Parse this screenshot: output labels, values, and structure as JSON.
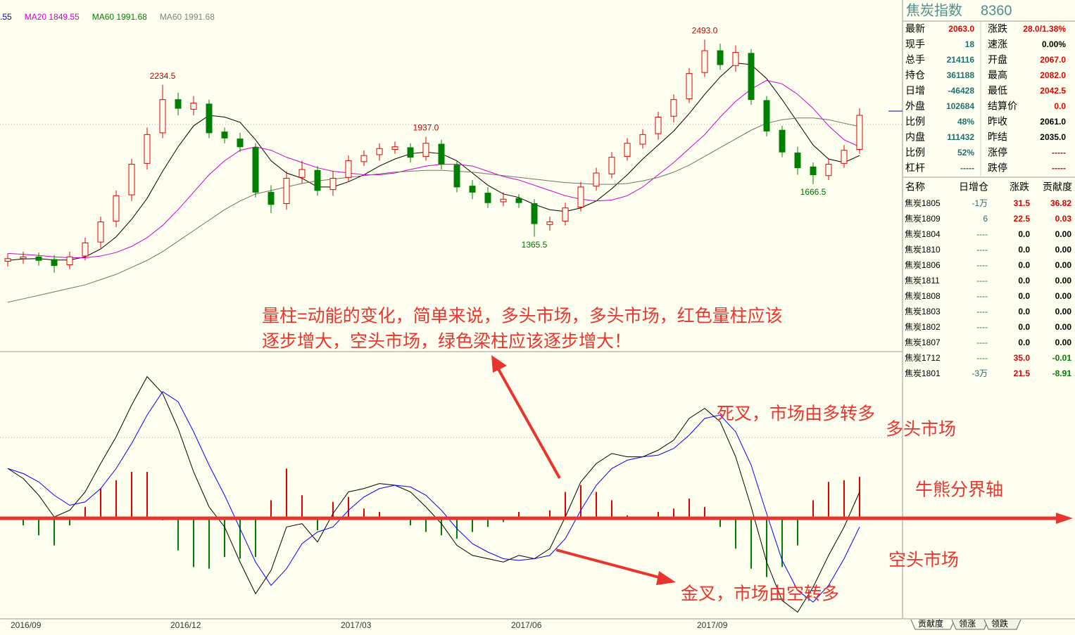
{
  "chart_data": {
    "type": "candlestick",
    "indicator_legend": [
      {
        "text": ".55",
        "color": "#0000c0"
      },
      {
        "text": "MA20 1849.55",
        "color": "#d000d0"
      },
      {
        "text": "MA60 1991.68",
        "color": "#008000"
      },
      {
        "text": "MA60 1991.68",
        "color": "#808080"
      }
    ],
    "categories": [
      "2016/09",
      null,
      null,
      null,
      null,
      null,
      null,
      null,
      null,
      null,
      null,
      "2016/12",
      null,
      null,
      null,
      null,
      null,
      null,
      null,
      null,
      null,
      null,
      "2017/03",
      null,
      null,
      null,
      null,
      null,
      null,
      null,
      null,
      null,
      null,
      "2017/06",
      null,
      null,
      null,
      null,
      null,
      null,
      null,
      null,
      null,
      null,
      null,
      "2017/09",
      null,
      null,
      null,
      null,
      null,
      null,
      null,
      null,
      null,
      null
    ],
    "open": [
      1225,
      1240,
      1250,
      1235,
      1205,
      1255,
      1335,
      1455,
      1605,
      1785,
      1960,
      2150,
      2095,
      2125,
      1965,
      1925,
      1875,
      1620,
      1555,
      1705,
      1745,
      1635,
      1705,
      1795,
      1835,
      1865,
      1875,
      1825,
      1895,
      1775,
      1655,
      1615,
      1565,
      1585,
      1555,
      1435,
      1455,
      1535,
      1655,
      1725,
      1825,
      1895,
      1955,
      2055,
      2155,
      2305,
      2430,
      2345,
      2415,
      2145,
      1975,
      1845,
      1765,
      1715,
      1785,
      1865
    ],
    "high": [
      1270,
      1280,
      1275,
      1260,
      1280,
      1360,
      1480,
      1630,
      1810,
      1990,
      2234.5,
      2190,
      2170,
      2150,
      1990,
      1960,
      1900,
      1660,
      1740,
      1800,
      1770,
      1740,
      1830,
      1860,
      1900,
      1910,
      1900,
      1937,
      1920,
      1800,
      1690,
      1650,
      1620,
      1610,
      1580,
      1480,
      1560,
      1680,
      1760,
      1850,
      1930,
      1980,
      2080,
      2180,
      2330,
      2493,
      2470,
      2460,
      2440,
      2170,
      2000,
      1880,
      1790,
      1810,
      1890,
      2100
    ],
    "low": [
      1195,
      1210,
      1200,
      1160,
      1180,
      1230,
      1300,
      1420,
      1570,
      1750,
      1930,
      2060,
      2060,
      1930,
      1900,
      1850,
      1590,
      1500,
      1520,
      1670,
      1600,
      1600,
      1680,
      1770,
      1800,
      1840,
      1790,
      1800,
      1750,
      1620,
      1580,
      1530,
      1540,
      1530,
      1365.5,
      1400,
      1430,
      1510,
      1630,
      1700,
      1800,
      1870,
      1920,
      2020,
      2130,
      2280,
      2320,
      2310,
      2120,
      1940,
      1820,
      1720,
      1666.5,
      1690,
      1760,
      1840
    ],
    "close": [
      1240,
      1250,
      1230,
      1200,
      1250,
      1330,
      1450,
      1600,
      1780,
      1950,
      2150,
      2100,
      2130,
      1960,
      1930,
      1880,
      1620,
      1550,
      1700,
      1750,
      1630,
      1700,
      1800,
      1830,
      1870,
      1880,
      1820,
      1900,
      1780,
      1650,
      1620,
      1560,
      1580,
      1560,
      1440,
      1450,
      1530,
      1650,
      1730,
      1820,
      1900,
      1950,
      2050,
      2150,
      2300,
      2430,
      2350,
      2420,
      2150,
      1970,
      1850,
      1760,
      1720,
      1780,
      1860,
      2060
    ],
    "up_color": "#e00000",
    "down_color": "#008000",
    "ylim": [
      720,
      2720
    ],
    "extremes": [
      2234.5,
      {
        "value": 1937,
        "label": "1937.0"
      },
      {
        "value": 2493,
        "label": "2493.0"
      },
      1365.5,
      1666.5
    ],
    "ma_series": [
      {
        "color": "#000000",
        "values": [
          1230,
          1238,
          1240,
          1232,
          1232,
          1250,
          1295,
          1365,
          1465,
          1585,
          1740,
          1880,
          2000,
          2060,
          2050,
          2020,
          1920,
          1800,
          1730,
          1700,
          1650,
          1650,
          1680,
          1720,
          1770,
          1810,
          1840,
          1850,
          1840,
          1800,
          1730,
          1660,
          1610,
          1590,
          1550,
          1520,
          1510,
          1530,
          1570,
          1640,
          1720,
          1810,
          1890,
          1970,
          2070,
          2180,
          2280,
          2360,
          2350,
          2270,
          2150,
          2020,
          1890,
          1810,
          1790,
          1830
        ]
      },
      {
        "color": "#d000d0",
        "values": [
          1270,
          1265,
          1258,
          1250,
          1245,
          1245,
          1255,
          1275,
          1310,
          1360,
          1430,
          1520,
          1620,
          1720,
          1800,
          1860,
          1880,
          1860,
          1820,
          1790,
          1760,
          1740,
          1730,
          1720,
          1720,
          1730,
          1750,
          1770,
          1780,
          1780,
          1770,
          1740,
          1710,
          1690,
          1660,
          1630,
          1600,
          1580,
          1570,
          1575,
          1600,
          1650,
          1720,
          1790,
          1870,
          1950,
          2050,
          2140,
          2210,
          2260,
          2240,
          2180,
          2100,
          2000,
          1920,
          1880
        ]
      },
      {
        "color": "#707070",
        "values": [
          990,
          1010,
          1030,
          1050,
          1070,
          1090,
          1120,
          1150,
          1190,
          1230,
          1280,
          1340,
          1400,
          1460,
          1520,
          1570,
          1610,
          1630,
          1650,
          1670,
          1685,
          1695,
          1705,
          1715,
          1725,
          1735,
          1740,
          1745,
          1745,
          1740,
          1735,
          1725,
          1715,
          1705,
          1695,
          1685,
          1675,
          1670,
          1665,
          1665,
          1670,
          1685,
          1705,
          1735,
          1775,
          1825,
          1875,
          1925,
          1975,
          2015,
          2035,
          2045,
          2045,
          2035,
          2015,
          1995
        ]
      }
    ],
    "macd": {
      "ylim": [
        -60,
        100
      ],
      "dif": {
        "color": "#000000",
        "values": [
          30,
          24,
          14,
          1,
          5,
          16,
          33,
          49,
          68,
          85,
          75,
          54,
          28,
          7,
          -5,
          -26,
          -45,
          -31,
          -5,
          -3,
          -14,
          3,
          16,
          18,
          21,
          20,
          16,
          7,
          -3,
          -16,
          -22,
          -24,
          -26,
          -22,
          -24,
          -18,
          1,
          22,
          33,
          39,
          37,
          37,
          41,
          47,
          60,
          66,
          58,
          37,
          7,
          -26,
          -49,
          -56,
          -41,
          -22,
          -5,
          16
        ]
      },
      "dea": {
        "color": "#0000ff",
        "values": [
          30,
          27,
          22,
          14,
          8,
          10,
          18,
          30,
          45,
          62,
          76,
          70,
          52,
          32,
          14,
          -6,
          -26,
          -40,
          -30,
          -15,
          -8,
          -5,
          5,
          13,
          18,
          20,
          19,
          14,
          5,
          -6,
          -15,
          -20,
          -24,
          -25,
          -24,
          -22,
          -12,
          5,
          20,
          30,
          35,
          37,
          38,
          42,
          50,
          60,
          62,
          52,
          32,
          3,
          -25,
          -43,
          -50,
          -40,
          -24,
          -5
        ]
      },
      "hist": {
        "values": [
          0,
          -4,
          -10,
          -16,
          -4,
          7,
          18,
          23,
          28,
          28,
          -1,
          -19,
          -29,
          -30,
          -23,
          -24,
          -23,
          11,
          30,
          14,
          -7,
          10,
          13,
          6,
          4,
          0,
          -4,
          -8,
          -10,
          -12,
          -8,
          -5,
          -2,
          4,
          0,
          5,
          16,
          20,
          16,
          11,
          2,
          0,
          4,
          6,
          12,
          7,
          -5,
          -18,
          -30,
          -35,
          -29,
          -16,
          11,
          22,
          23,
          25
        ]
      }
    }
  },
  "quote_panel": {
    "title": "焦炭指数",
    "code": "8360",
    "rows": [
      [
        "最新",
        "2063.0",
        "涨跌",
        "28.0/1.38%"
      ],
      [
        "现手",
        "18",
        "速涨",
        "0.00%"
      ],
      [
        "总手",
        "214116",
        "开盘",
        "2067.0"
      ],
      [
        "持仓",
        "361188",
        "最高",
        "2082.0"
      ],
      [
        "日增",
        "-46428",
        "最低",
        "2042.5"
      ],
      [
        "外盘",
        "102684",
        "结算价",
        "0.0"
      ],
      [
        "比例",
        "48%",
        "昨收",
        "2061.0"
      ],
      [
        "内盘",
        "111432",
        "昨结",
        "2035.0"
      ],
      [
        "比例",
        "52%",
        "涨停",
        "-----"
      ],
      [
        "杠杆",
        "-----",
        "跌停",
        "-----"
      ]
    ]
  },
  "contracts": {
    "header": [
      "名称",
      "日增仓",
      "涨跌",
      "贡献度"
    ],
    "rows": [
      [
        "焦炭1805",
        "-1万",
        "31.5",
        "36.82"
      ],
      [
        "焦炭1809",
        "6",
        "22.5",
        "0.03"
      ],
      [
        "焦炭1804",
        "----",
        "0.0",
        "0.00"
      ],
      [
        "焦炭1810",
        "----",
        "0.0",
        "0.00"
      ],
      [
        "焦炭1806",
        "----",
        "0.0",
        "0.00"
      ],
      [
        "焦炭1811",
        "----",
        "0.0",
        "0.00"
      ],
      [
        "焦炭1808",
        "----",
        "0.0",
        "0.00"
      ],
      [
        "焦炭1803",
        "----",
        "0.0",
        "0.00"
      ],
      [
        "焦炭1802",
        "----",
        "0.0",
        "0.00"
      ],
      [
        "焦炭1807",
        "----",
        "0.0",
        "0.00"
      ],
      [
        "焦炭1712",
        "----",
        "35.0",
        "-0.01"
      ],
      [
        "焦炭1801",
        "-3万",
        "21.5",
        "-8.91"
      ]
    ]
  },
  "tabs": [
    "贡献度",
    "领涨",
    "领跌"
  ],
  "annotations": [
    "量柱=动能的变化，简单来说，多头市场，多头市场，红色量柱应该",
    "逐步增大，空头市场，绿色梁柱应该逐步增大！",
    "死叉，市场由多转多",
    "多头市场",
    "牛熊分界轴",
    "空头市场",
    "金叉，市场由空转多"
  ]
}
